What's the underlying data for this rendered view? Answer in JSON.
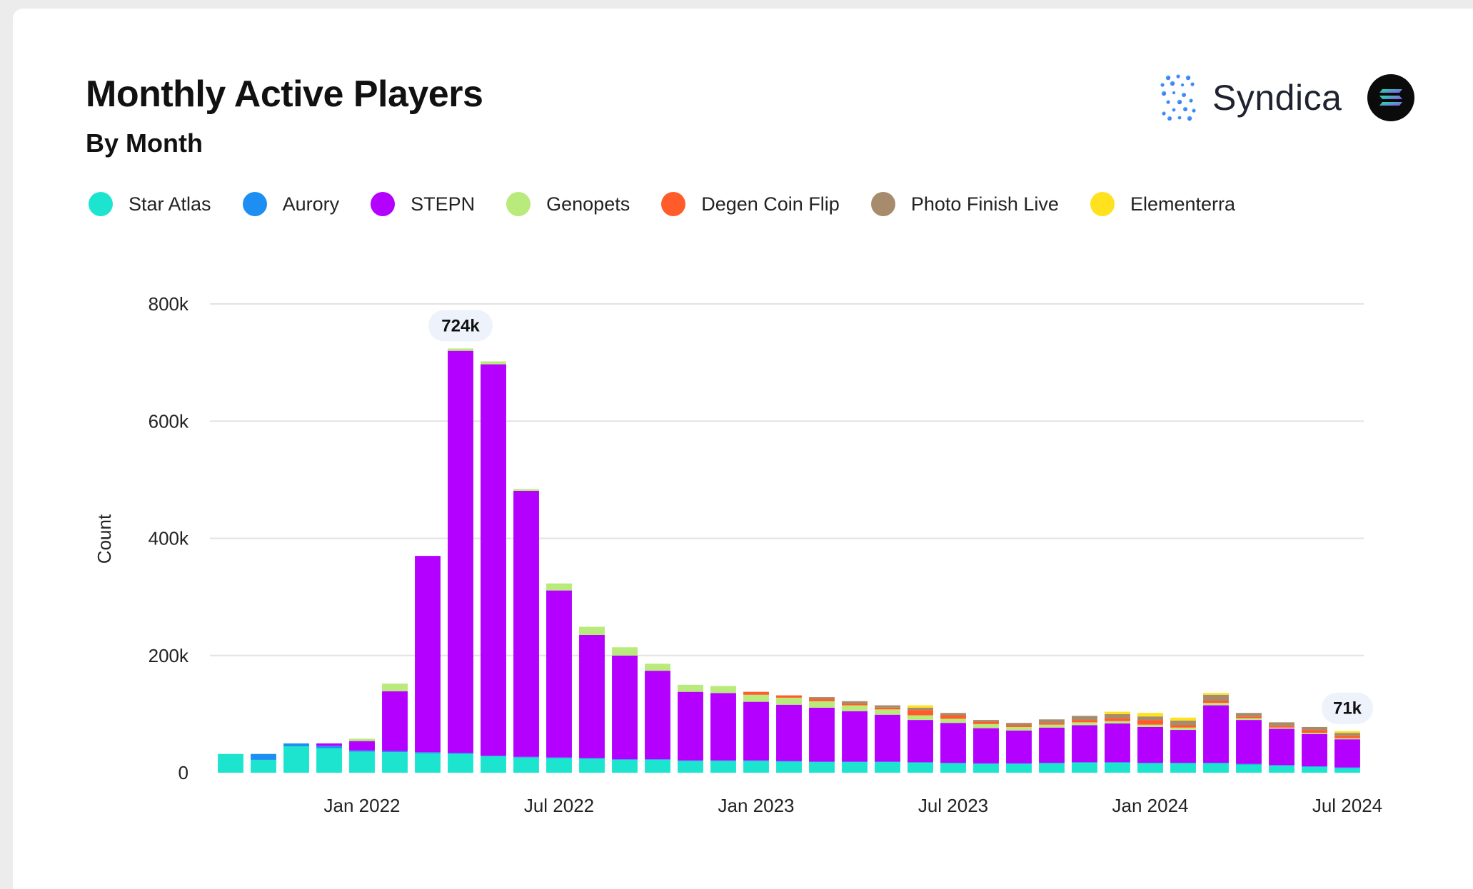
{
  "header": {
    "title": "Monthly Active Players",
    "subtitle": "By Month",
    "brand_name": "Syndica"
  },
  "icons": {
    "syndica_logo": "syndica-dots-icon",
    "solana_logo": "solana-icon"
  },
  "chart_data": {
    "type": "bar",
    "stacked": true,
    "title": "Monthly Active Players",
    "subtitle": "By Month",
    "xlabel": "",
    "ylabel": "Count",
    "ylim": [
      0,
      800000
    ],
    "y_ticks": [
      0,
      200000,
      400000,
      600000,
      800000
    ],
    "y_tick_labels": [
      "0",
      "200k",
      "400k",
      "600k",
      "800k"
    ],
    "x_tick_labels": [
      {
        "label": "Jan 2022",
        "month": "2022-01"
      },
      {
        "label": "Jul 2022",
        "month": "2022-07"
      },
      {
        "label": "Jan 2023",
        "month": "2023-01"
      },
      {
        "label": "Jul 2023",
        "month": "2023-07"
      },
      {
        "label": "Jan 2024",
        "month": "2024-01"
      },
      {
        "label": "Jul 2024",
        "month": "2024-07"
      }
    ],
    "grid": true,
    "legend_position": "top-left",
    "categories": [
      "2021-09",
      "2021-10",
      "2021-11",
      "2021-12",
      "2022-01",
      "2022-02",
      "2022-03",
      "2022-04",
      "2022-05",
      "2022-06",
      "2022-07",
      "2022-08",
      "2022-09",
      "2022-10",
      "2022-11",
      "2022-12",
      "2023-01",
      "2023-02",
      "2023-03",
      "2023-04",
      "2023-05",
      "2023-06",
      "2023-07",
      "2023-08",
      "2023-09",
      "2023-10",
      "2023-11",
      "2023-12",
      "2024-01",
      "2024-02",
      "2024-03",
      "2024-04",
      "2024-05",
      "2024-06",
      "2024-07"
    ],
    "series": [
      {
        "name": "Star Atlas",
        "color": "#1de4cf",
        "values": [
          32000,
          22000,
          45000,
          42000,
          36000,
          35000,
          33000,
          32000,
          28000,
          26000,
          25000,
          24000,
          22000,
          22000,
          20000,
          20000,
          20000,
          19000,
          18000,
          18000,
          18000,
          17000,
          16000,
          15000,
          15000,
          16000,
          17000,
          17000,
          16000,
          16000,
          16000,
          14000,
          12000,
          10000,
          8000
        ]
      },
      {
        "name": "Aurory",
        "color": "#1e8ff2",
        "values": [
          0,
          10000,
          5000,
          4000,
          2000,
          2000,
          2000,
          2000,
          1000,
          1000,
          1000,
          1000,
          1000,
          1000,
          1000,
          1000,
          1000,
          1000,
          1000,
          1000,
          1000,
          1000,
          1000,
          1000,
          1000,
          1000,
          1000,
          1000,
          1000,
          1000,
          1000,
          1000,
          1000,
          1000,
          1000
        ]
      },
      {
        "name": "STEPN",
        "color": "#b300ff",
        "values": [
          0,
          0,
          0,
          4000,
          16000,
          102000,
          335000,
          686000,
          668000,
          454000,
          285000,
          210000,
          177000,
          151000,
          117000,
          115000,
          100000,
          96000,
          92000,
          86000,
          80000,
          72000,
          68000,
          60000,
          56000,
          60000,
          63000,
          66000,
          61000,
          56000,
          98000,
          75000,
          62000,
          55000,
          48000
        ]
      },
      {
        "name": "Genopets",
        "color": "#b9ea7c",
        "values": [
          0,
          0,
          0,
          0,
          4000,
          13000,
          0,
          4000,
          5000,
          3000,
          12000,
          14000,
          14000,
          12000,
          12000,
          12000,
          12000,
          12000,
          11000,
          10000,
          9000,
          8000,
          7000,
          7000,
          6000,
          5000,
          5000,
          4000,
          4000,
          4000,
          4000,
          3000,
          2000,
          2000,
          2000
        ]
      },
      {
        "name": "Degen Coin Flip",
        "color": "#ff5c2a",
        "values": [
          0,
          0,
          0,
          0,
          0,
          0,
          0,
          0,
          0,
          0,
          0,
          0,
          0,
          0,
          0,
          0,
          5000,
          4000,
          4000,
          3000,
          3000,
          9000,
          6000,
          4000,
          3000,
          3000,
          4000,
          5000,
          8000,
          4000,
          4000,
          3000,
          3000,
          5000,
          4000
        ]
      },
      {
        "name": "Photo Finish Live",
        "color": "#a68b6c",
        "values": [
          0,
          0,
          0,
          0,
          0,
          0,
          0,
          0,
          0,
          0,
          0,
          0,
          0,
          0,
          0,
          0,
          0,
          0,
          3000,
          4000,
          4000,
          4000,
          4000,
          3000,
          4000,
          6000,
          7000,
          7000,
          6000,
          8000,
          10000,
          6000,
          6000,
          5000,
          5000
        ]
      },
      {
        "name": "Elementerra",
        "color": "#ffe11e",
        "values": [
          0,
          0,
          0,
          0,
          0,
          0,
          0,
          0,
          0,
          0,
          0,
          0,
          0,
          0,
          0,
          0,
          0,
          0,
          0,
          0,
          0,
          4000,
          0,
          0,
          0,
          0,
          0,
          4000,
          6000,
          5000,
          3000,
          0,
          0,
          0,
          3000
        ]
      }
    ],
    "annotations": [
      {
        "label": "724k",
        "month": "2022-04"
      },
      {
        "label": "71k",
        "month": "2024-07"
      }
    ]
  }
}
